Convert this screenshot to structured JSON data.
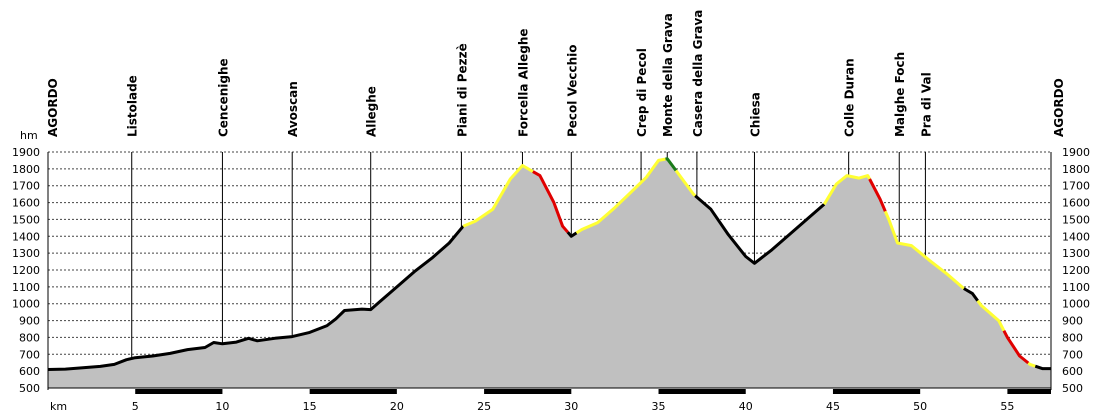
{
  "chart_data": {
    "type": "area",
    "ylabel": "hm",
    "xlabel": "km",
    "xlim": [
      0,
      57.5
    ],
    "ylim": [
      500,
      1900
    ],
    "yticks": [
      500,
      600,
      700,
      800,
      900,
      1000,
      1100,
      1200,
      1300,
      1400,
      1500,
      1600,
      1700,
      1800,
      1900
    ],
    "xticks": [
      5,
      10,
      15,
      20,
      25,
      30,
      35,
      40,
      45,
      50,
      55
    ],
    "grid": true,
    "colors": {
      "fill": "#c0c0c0",
      "normal": "#000000",
      "moderate": "#ffff33",
      "steep": "#e00000",
      "very_steep": "#1a7a1a"
    },
    "profile": [
      {
        "x": 0.0,
        "y": 610
      },
      {
        "x": 1.0,
        "y": 612
      },
      {
        "x": 2.0,
        "y": 620
      },
      {
        "x": 3.0,
        "y": 628
      },
      {
        "x": 3.8,
        "y": 640
      },
      {
        "x": 4.5,
        "y": 668
      },
      {
        "x": 5.0,
        "y": 680
      },
      {
        "x": 6.0,
        "y": 690
      },
      {
        "x": 7.0,
        "y": 705
      },
      {
        "x": 8.0,
        "y": 728
      },
      {
        "x": 9.0,
        "y": 740
      },
      {
        "x": 9.5,
        "y": 770
      },
      {
        "x": 10.0,
        "y": 762
      },
      {
        "x": 10.8,
        "y": 772
      },
      {
        "x": 11.5,
        "y": 795
      },
      {
        "x": 12.0,
        "y": 780
      },
      {
        "x": 13.0,
        "y": 795
      },
      {
        "x": 14.0,
        "y": 805
      },
      {
        "x": 15.0,
        "y": 830
      },
      {
        "x": 16.0,
        "y": 870
      },
      {
        "x": 16.5,
        "y": 910
      },
      {
        "x": 17.0,
        "y": 960
      },
      {
        "x": 18.0,
        "y": 968
      },
      {
        "x": 18.5,
        "y": 965
      },
      {
        "x": 19.0,
        "y": 1010
      },
      {
        "x": 20.0,
        "y": 1100
      },
      {
        "x": 21.0,
        "y": 1190
      },
      {
        "x": 22.0,
        "y": 1270
      },
      {
        "x": 23.0,
        "y": 1360
      },
      {
        "x": 23.8,
        "y": 1460
      },
      {
        "x": 24.5,
        "y": 1490
      },
      {
        "x": 25.5,
        "y": 1560
      },
      {
        "x": 26.5,
        "y": 1740
      },
      {
        "x": 27.2,
        "y": 1820
      },
      {
        "x": 28.2,
        "y": 1760
      },
      {
        "x": 29.0,
        "y": 1600
      },
      {
        "x": 29.5,
        "y": 1460
      },
      {
        "x": 30.0,
        "y": 1400
      },
      {
        "x": 30.6,
        "y": 1440
      },
      {
        "x": 31.5,
        "y": 1480
      },
      {
        "x": 32.5,
        "y": 1570
      },
      {
        "x": 33.5,
        "y": 1670
      },
      {
        "x": 34.3,
        "y": 1750
      },
      {
        "x": 35.0,
        "y": 1850
      },
      {
        "x": 35.5,
        "y": 1860
      },
      {
        "x": 36.0,
        "y": 1790
      },
      {
        "x": 37.0,
        "y": 1650
      },
      {
        "x": 38.0,
        "y": 1560
      },
      {
        "x": 39.0,
        "y": 1410
      },
      {
        "x": 40.0,
        "y": 1280
      },
      {
        "x": 40.5,
        "y": 1240
      },
      {
        "x": 41.5,
        "y": 1320
      },
      {
        "x": 42.5,
        "y": 1410
      },
      {
        "x": 43.5,
        "y": 1500
      },
      {
        "x": 44.5,
        "y": 1590
      },
      {
        "x": 45.2,
        "y": 1710
      },
      {
        "x": 45.8,
        "y": 1760
      },
      {
        "x": 46.5,
        "y": 1745
      },
      {
        "x": 47.0,
        "y": 1760
      },
      {
        "x": 47.7,
        "y": 1620
      },
      {
        "x": 48.2,
        "y": 1500
      },
      {
        "x": 48.7,
        "y": 1360
      },
      {
        "x": 49.5,
        "y": 1345
      },
      {
        "x": 50.5,
        "y": 1260
      },
      {
        "x": 51.5,
        "y": 1180
      },
      {
        "x": 52.5,
        "y": 1090
      },
      {
        "x": 53.0,
        "y": 1060
      },
      {
        "x": 53.5,
        "y": 990
      },
      {
        "x": 54.5,
        "y": 900
      },
      {
        "x": 55.0,
        "y": 800
      },
      {
        "x": 55.7,
        "y": 690
      },
      {
        "x": 56.3,
        "y": 640
      },
      {
        "x": 57.0,
        "y": 615
      }
    ],
    "segments": [
      {
        "from": 0.0,
        "to": 23.8,
        "grade": "normal"
      },
      {
        "from": 23.8,
        "to": 27.8,
        "grade": "moderate"
      },
      {
        "from": 27.8,
        "to": 29.8,
        "grade": "steep"
      },
      {
        "from": 29.8,
        "to": 30.3,
        "grade": "normal"
      },
      {
        "from": 30.3,
        "to": 35.4,
        "grade": "moderate"
      },
      {
        "from": 35.4,
        "to": 36.0,
        "grade": "very_steep"
      },
      {
        "from": 36.0,
        "to": 37.1,
        "grade": "moderate"
      },
      {
        "from": 37.1,
        "to": 44.5,
        "grade": "normal"
      },
      {
        "from": 44.5,
        "to": 47.1,
        "grade": "moderate"
      },
      {
        "from": 47.1,
        "to": 48.0,
        "grade": "steep"
      },
      {
        "from": 48.0,
        "to": 52.5,
        "grade": "moderate"
      },
      {
        "from": 52.5,
        "to": 53.3,
        "grade": "normal"
      },
      {
        "from": 53.3,
        "to": 54.8,
        "grade": "moderate"
      },
      {
        "from": 54.8,
        "to": 56.2,
        "grade": "steep"
      },
      {
        "from": 56.2,
        "to": 56.6,
        "grade": "moderate"
      },
      {
        "from": 56.6,
        "to": 57.5,
        "grade": "normal"
      }
    ],
    "places": [
      {
        "name": "AGORDO",
        "x": 0.0,
        "y": 610
      },
      {
        "name": "Listolade",
        "x": 4.8,
        "y": 680
      },
      {
        "name": "Cencenighe",
        "x": 10.0,
        "y": 762
      },
      {
        "name": "Avoscan",
        "x": 14.0,
        "y": 805
      },
      {
        "name": "Alleghe",
        "x": 18.5,
        "y": 965
      },
      {
        "name": "Piani di Pezzè",
        "x": 23.7,
        "y": 1455
      },
      {
        "name": "Forcella Alleghe",
        "x": 27.2,
        "y": 1820
      },
      {
        "name": "Pecol Vecchio",
        "x": 30.0,
        "y": 1400
      },
      {
        "name": "Crep di Pecol",
        "x": 34.0,
        "y": 1720
      },
      {
        "name": "Monte della Grava",
        "x": 35.5,
        "y": 1860
      },
      {
        "name": "Casera della Grava",
        "x": 37.2,
        "y": 1640
      },
      {
        "name": "Chiesa",
        "x": 40.5,
        "y": 1240
      },
      {
        "name": "Colle Duran",
        "x": 45.9,
        "y": 1760
      },
      {
        "name": "Malghe Foch",
        "x": 48.8,
        "y": 1360
      },
      {
        "name": "Pra di Val",
        "x": 50.3,
        "y": 1265
      },
      {
        "name": "AGORDO",
        "x": 57.0,
        "y": 615
      }
    ]
  }
}
